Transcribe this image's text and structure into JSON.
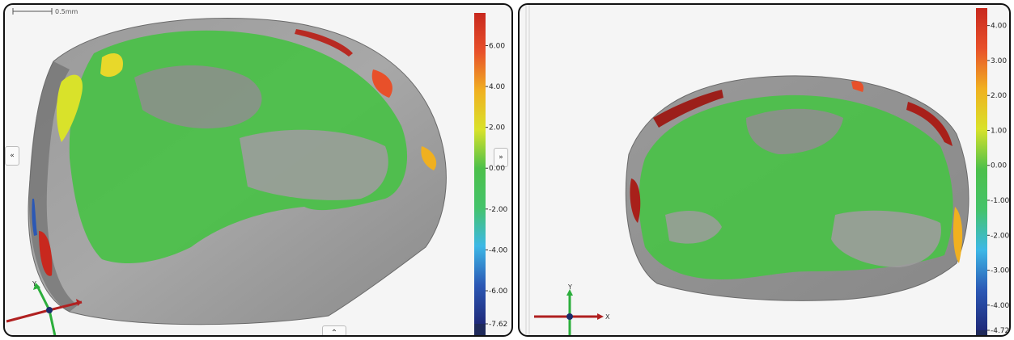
{
  "left_view": {
    "scale_bar_label": "0.5mm",
    "side_button_icon": "«",
    "collapse_right_icon": "»",
    "bottom_button_icon": "»",
    "axis_y_label": "Y"
  },
  "right_view": {
    "axis_y_label": "Y",
    "axis_x_label": "X"
  },
  "chart_data": [
    {
      "type": "heatmap",
      "title": "",
      "colormap": [
        "#1f2a7a",
        "#2b58b5",
        "#3db8e6",
        "#44c36a",
        "#4cc04a",
        "#d9e22a",
        "#f0b020",
        "#e8502a",
        "#c8281e"
      ],
      "range": [
        -7.62,
        7.6
      ],
      "tick_labels": [
        "6.00",
        "4.00",
        "2.00",
        "0.00",
        "-2.00",
        "-4.00",
        "-6.00",
        "-7.62"
      ],
      "tick_values": [
        6,
        4,
        2,
        0,
        -2,
        -4,
        -6,
        -7.62
      ]
    },
    {
      "type": "heatmap",
      "title": "",
      "colormap": [
        "#1f2a7a",
        "#2b58b5",
        "#3db8e6",
        "#44c36a",
        "#4cc04a",
        "#d9e22a",
        "#f0b020",
        "#e8502a",
        "#c8281e"
      ],
      "range": [
        -4.72,
        4.5
      ],
      "tick_labels": [
        "4.00",
        "3.00",
        "2.00",
        "1.00",
        "0.00",
        "-1.00",
        "-2.00",
        "-3.00",
        "-4.00",
        "-4.72"
      ],
      "tick_values": [
        4,
        3,
        2,
        1,
        0,
        -1,
        -2,
        -3,
        -4,
        -4.72
      ]
    }
  ]
}
